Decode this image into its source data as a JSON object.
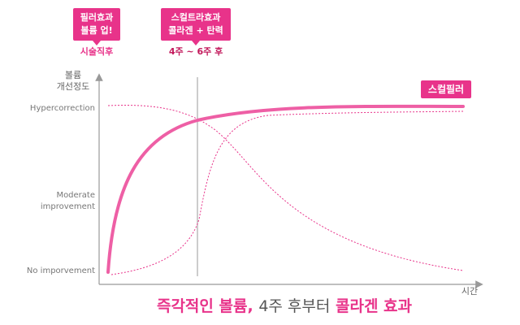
{
  "callouts": [
    {
      "lines": [
        "필러효과",
        "볼륨 업!"
      ],
      "caption": "시술직후"
    },
    {
      "lines": [
        "스컬트라효과",
        "콜라겐 + 탄력"
      ],
      "caption": "4주 ~ 6주 후"
    }
  ],
  "y_axis": {
    "title": [
      "볼륨",
      "개선정도"
    ],
    "levels": [
      [
        "Hypercorrection"
      ],
      [
        "Moderate",
        "improvement"
      ],
      [
        "No imporvement"
      ]
    ]
  },
  "x_axis": {
    "title": "시간"
  },
  "badge": "스컬필러",
  "caption": {
    "part1": "즉각적인 볼륨,",
    "part2": "4주 후부터",
    "part3": "콜라겐 효과"
  }
}
